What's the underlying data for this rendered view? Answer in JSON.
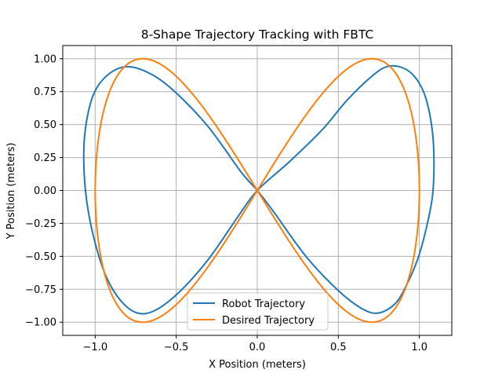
{
  "chart_data": {
    "type": "line",
    "title": "8-Shape Trajectory Tracking with FBTC",
    "xlabel": "X Position (meters)",
    "ylabel": "Y Position (meters)",
    "xlim": [
      -1.2,
      1.2
    ],
    "ylim": [
      -1.1,
      1.1
    ],
    "grid": true,
    "legend_position": "lower center",
    "x_ticks": [
      -1.0,
      -0.5,
      0.0,
      0.5,
      1.0
    ],
    "x_tick_labels": [
      "−1.0",
      "−0.5",
      "0.0",
      "0.5",
      "1.0"
    ],
    "y_ticks": [
      1.0,
      0.75,
      0.5,
      0.25,
      0.0,
      -0.25,
      -0.5,
      -0.75,
      -1.0
    ],
    "y_tick_labels": [
      "1.00",
      "0.75",
      "0.50",
      "0.25",
      "0.00",
      "−0.25",
      "−0.50",
      "−0.75",
      "−1.00"
    ],
    "series": [
      {
        "name": "Robot Trajectory",
        "color": "#1f77b4",
        "points": [
          [
            0.0,
            0.0
          ],
          [
            0.2,
            0.22
          ],
          [
            0.4,
            0.46
          ],
          [
            0.55,
            0.68
          ],
          [
            0.7,
            0.86
          ],
          [
            0.8,
            0.94
          ],
          [
            0.9,
            0.93
          ],
          [
            0.98,
            0.85
          ],
          [
            1.04,
            0.7
          ],
          [
            1.08,
            0.45
          ],
          [
            1.09,
            0.2
          ],
          [
            1.08,
            -0.05
          ],
          [
            1.04,
            -0.3
          ],
          [
            0.99,
            -0.52
          ],
          [
            0.92,
            -0.72
          ],
          [
            0.85,
            -0.86
          ],
          [
            0.75,
            -0.93
          ],
          [
            0.65,
            -0.9
          ],
          [
            0.5,
            -0.76
          ],
          [
            0.3,
            -0.5
          ],
          [
            0.1,
            -0.16
          ],
          [
            0.0,
            0.0
          ],
          [
            -0.1,
            0.14
          ],
          [
            -0.3,
            0.48
          ],
          [
            -0.5,
            0.74
          ],
          [
            -0.65,
            0.88
          ],
          [
            -0.8,
            0.94
          ],
          [
            -0.92,
            0.88
          ],
          [
            -1.01,
            0.73
          ],
          [
            -1.06,
            0.47
          ],
          [
            -1.07,
            0.2
          ],
          [
            -1.05,
            -0.1
          ],
          [
            -1.0,
            -0.4
          ],
          [
            -0.93,
            -0.66
          ],
          [
            -0.84,
            -0.84
          ],
          [
            -0.74,
            -0.93
          ],
          [
            -0.63,
            -0.91
          ],
          [
            -0.48,
            -0.77
          ],
          [
            -0.3,
            -0.52
          ],
          [
            -0.12,
            -0.2
          ],
          [
            0.0,
            0.0
          ]
        ]
      },
      {
        "name": "Desired Trajectory",
        "color": "#ff7f0e",
        "parametric": "x = sin(t), y = sin(2t)",
        "t_range": [
          0,
          6.2832
        ]
      }
    ]
  }
}
